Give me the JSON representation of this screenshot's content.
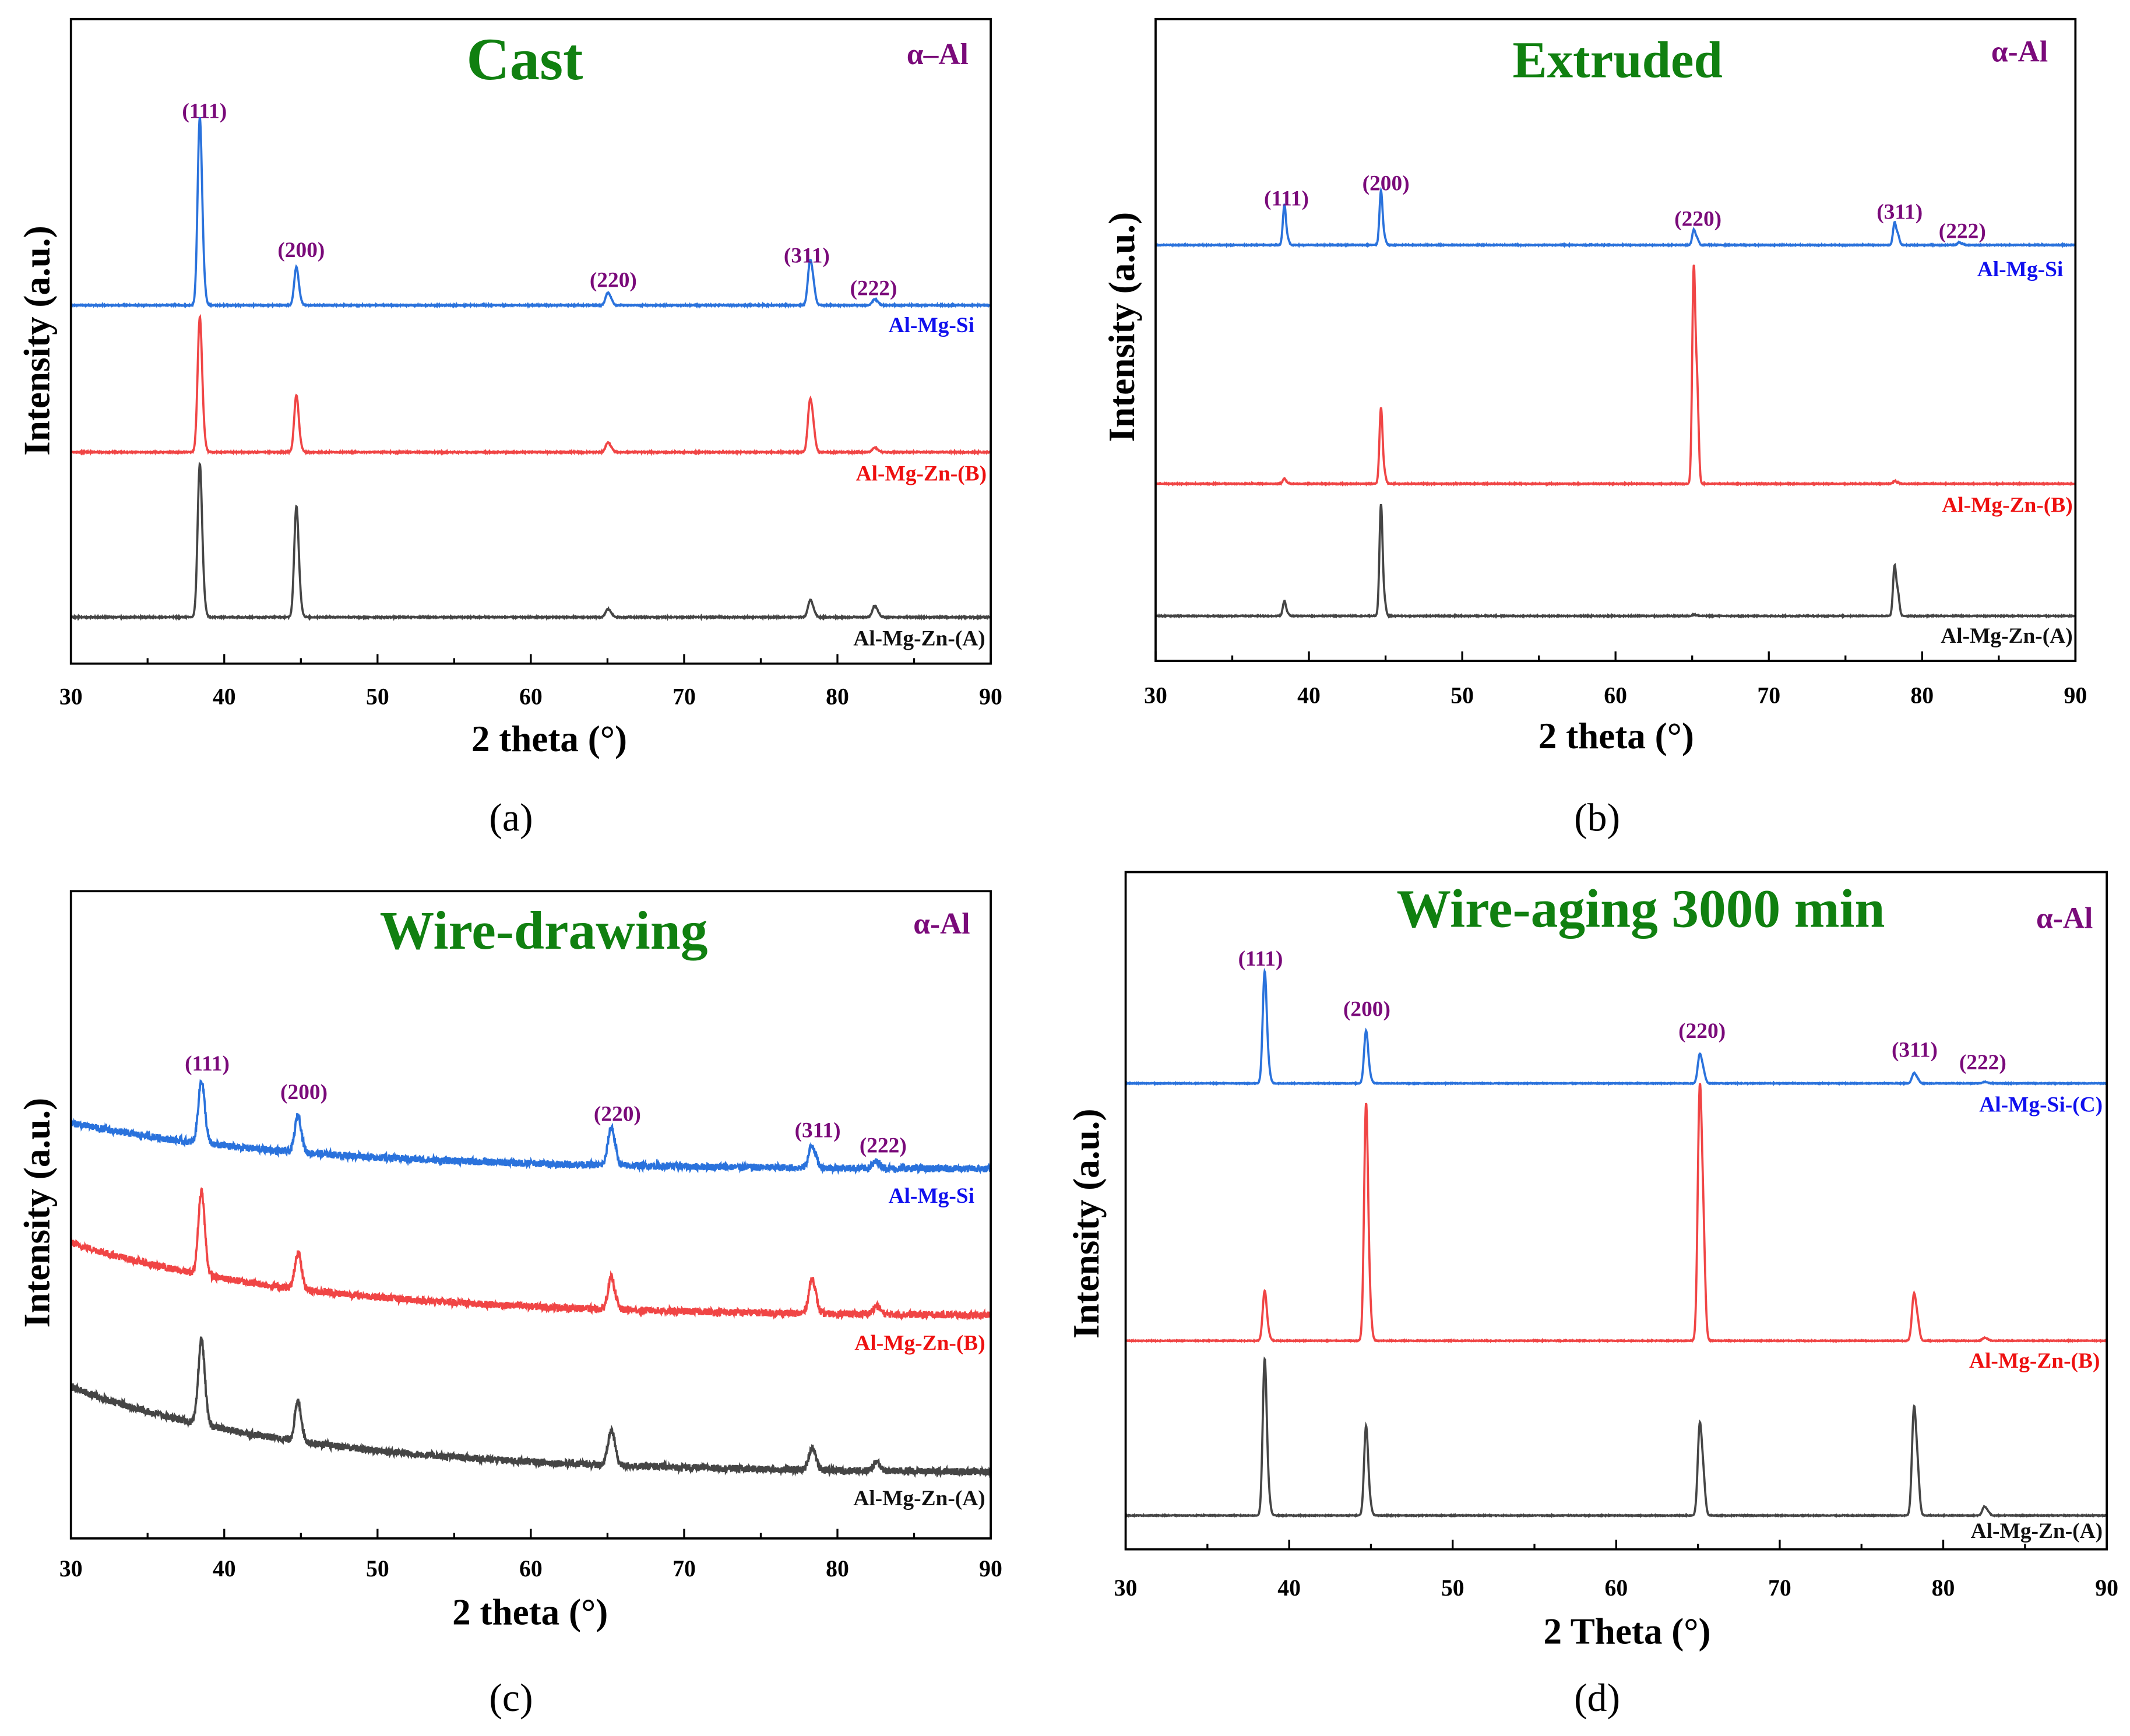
{
  "colors": {
    "blue_line": "#2a72dc",
    "red_line": "#f04545",
    "black_line": "#454545",
    "blue_label": "#1010ee",
    "red_label": "#ee1010",
    "black_label": "#111111",
    "hkl": "#7a0a7a",
    "title": "#108010"
  },
  "chart_data": [
    {
      "type": "line",
      "panel_label": "(a)",
      "title": "Cast",
      "phase_label": "α–Al",
      "xlabel": "2 theta (°)",
      "ylabel": "Intensity (a.u.)",
      "xlim": [
        30,
        90
      ],
      "ylim": [
        0,
        100
      ],
      "xticks": [
        30,
        40,
        50,
        60,
        70,
        80,
        90
      ],
      "hkl_labels": [
        "(111)",
        "(200)",
        "(220)",
        "(311)",
        "(222)"
      ],
      "peak_positions": [
        38.4,
        44.7,
        65.0,
        78.2,
        82.4
      ],
      "peak_width": 0.14,
      "noise": 0.15,
      "series": [
        {
          "name": "Al-Mg-Si",
          "color": "blue",
          "baseline": [
            55.6,
            55.6
          ],
          "peak_heights": [
            27.9,
            5.7,
            1.7,
            6.1,
            0.8
          ]
        },
        {
          "name": "Al-Mg-Zn-(B)",
          "color": "red",
          "baseline": [
            32.8,
            32.8
          ],
          "peak_heights": [
            20.1,
            8.5,
            1.3,
            7.2,
            0.6
          ]
        },
        {
          "name": "Al-Mg-Zn-(A)",
          "color": "black",
          "baseline": [
            7.2,
            7.2
          ],
          "peak_heights": [
            22.8,
            16.5,
            1.1,
            2.3,
            1.5
          ]
        }
      ]
    },
    {
      "type": "line",
      "panel_label": "(b)",
      "title": "Extruded",
      "phase_label": "α-Al",
      "xlabel": "2 theta (°)",
      "ylabel": "Intensity (a.u.)",
      "xlim": [
        30,
        90
      ],
      "ylim": [
        0,
        100
      ],
      "xticks": [
        30,
        40,
        50,
        60,
        70,
        80,
        90
      ],
      "hkl_labels": [
        "(111)",
        "(200)",
        "(220)",
        "(311)",
        "(222)"
      ],
      "peak_positions": [
        38.4,
        44.7,
        65.1,
        78.2,
        82.4
      ],
      "peak_width": 0.1,
      "noise": 0.12,
      "series": [
        {
          "name": "Al-Mg-Si",
          "color": "blue",
          "baseline": [
            64.8,
            64.8
          ],
          "peak_heights": [
            6.2,
            8.3,
            2.3,
            3.4,
            0.4
          ]
        },
        {
          "name": "Al-Mg-Zn-(B)",
          "color": "red",
          "baseline": [
            27.6,
            27.6
          ],
          "peak_heights": [
            0.8,
            11.7,
            32.7,
            0.4,
            0.0
          ]
        },
        {
          "name": "Al-Mg-Zn-(A)",
          "color": "black",
          "baseline": [
            7.0,
            7.0
          ],
          "peak_heights": [
            2.3,
            17.2,
            0.2,
            7.6,
            0.0
          ]
        }
      ]
    },
    {
      "type": "line",
      "panel_label": "(c)",
      "title": "Wire-drawing",
      "phase_label": "α-Al",
      "xlabel": "2 theta (°)",
      "ylabel": "Intensity (a.u.)",
      "xlim": [
        30,
        90
      ],
      "ylim": [
        0,
        100
      ],
      "xticks": [
        30,
        40,
        50,
        60,
        70,
        80,
        90
      ],
      "hkl_labels": [
        "(111)",
        "(200)",
        "(220)",
        "(311)",
        "(222)"
      ],
      "peak_positions": [
        38.5,
        44.8,
        65.2,
        78.3,
        82.5
      ],
      "peak_width": 0.2,
      "noise": 1.1,
      "series": [
        {
          "name": "Al-Mg-Si",
          "color": "blue",
          "baseline": [
            64.2,
            57.1
          ],
          "peak_heights": [
            9.0,
            5.3,
            4.6,
            2.7,
            0.8
          ]
        },
        {
          "name": "Al-Mg-Zn-(B)",
          "color": "red",
          "baseline": [
            45.7,
            34.5
          ],
          "peak_heights": [
            12.0,
            5.3,
            3.8,
            4.2,
            1.0
          ]
        },
        {
          "name": "Al-Mg-Zn-(A)",
          "color": "black",
          "baseline": [
            23.4,
            10.3
          ],
          "peak_heights": [
            12.2,
            5.7,
            4.2,
            2.7,
            1.0
          ]
        }
      ]
    },
    {
      "type": "line",
      "panel_label": "(d)",
      "title": "Wire-aging 3000 min",
      "phase_label": "α-Al",
      "xlabel": "2 Theta (°)",
      "ylabel": "Intensity (a.u.)",
      "xlim": [
        30,
        90
      ],
      "ylim": [
        0,
        100
      ],
      "xticks": [
        30,
        40,
        50,
        60,
        70,
        80,
        90
      ],
      "hkl_labels": [
        "(111)",
        "(200)",
        "(220)",
        "(311)",
        "(222)"
      ],
      "peak_positions": [
        38.5,
        44.7,
        65.1,
        78.2,
        82.5
      ],
      "peak_width": 0.12,
      "noise": 0.1,
      "series": [
        {
          "name": "Al-Mg-Si-(C)",
          "color": "blue",
          "baseline": [
            68.8,
            68.8
          ],
          "peak_heights": [
            16.1,
            7.6,
            4.0,
            1.4,
            0.2
          ]
        },
        {
          "name": "Al-Mg-Zn-(B)",
          "color": "red",
          "baseline": [
            30.8,
            30.8
          ],
          "peak_heights": [
            7.2,
            34.2,
            34.6,
            6.4,
            0.4
          ]
        },
        {
          "name": "Al-Mg-Zn-(A)",
          "color": "black",
          "baseline": [
            5.0,
            5.0
          ],
          "peak_heights": [
            22.5,
            12.9,
            12.5,
            14.7,
            1.2
          ]
        }
      ]
    }
  ]
}
